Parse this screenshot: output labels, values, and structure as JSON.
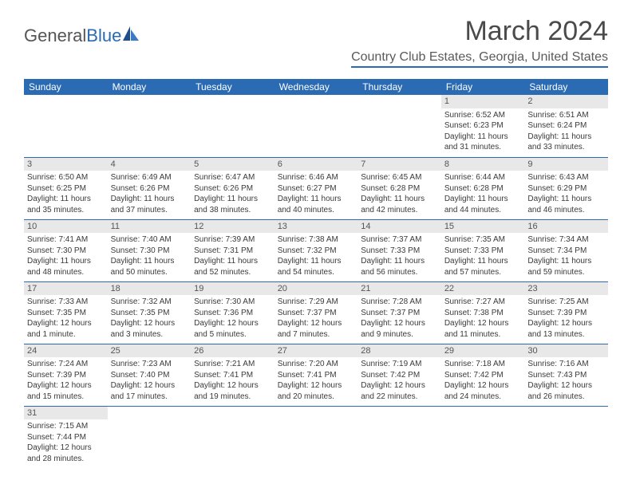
{
  "brand": {
    "part1": "General",
    "part2": "Blue"
  },
  "title": "March 2024",
  "location": "Country Club Estates, Georgia, United States",
  "colors": {
    "accent": "#2a6bb4",
    "header_bg": "#2a6bb4",
    "header_text": "#ffffff",
    "daynum_bg": "#e8e8e8",
    "text": "#3a3a3a",
    "bg": "#ffffff"
  },
  "day_headers": [
    "Sunday",
    "Monday",
    "Tuesday",
    "Wednesday",
    "Thursday",
    "Friday",
    "Saturday"
  ],
  "weeks": [
    [
      null,
      null,
      null,
      null,
      null,
      {
        "d": "1",
        "sr": "Sunrise: 6:52 AM",
        "ss": "Sunset: 6:23 PM",
        "dl": "Daylight: 11 hours and 31 minutes."
      },
      {
        "d": "2",
        "sr": "Sunrise: 6:51 AM",
        "ss": "Sunset: 6:24 PM",
        "dl": "Daylight: 11 hours and 33 minutes."
      }
    ],
    [
      {
        "d": "3",
        "sr": "Sunrise: 6:50 AM",
        "ss": "Sunset: 6:25 PM",
        "dl": "Daylight: 11 hours and 35 minutes."
      },
      {
        "d": "4",
        "sr": "Sunrise: 6:49 AM",
        "ss": "Sunset: 6:26 PM",
        "dl": "Daylight: 11 hours and 37 minutes."
      },
      {
        "d": "5",
        "sr": "Sunrise: 6:47 AM",
        "ss": "Sunset: 6:26 PM",
        "dl": "Daylight: 11 hours and 38 minutes."
      },
      {
        "d": "6",
        "sr": "Sunrise: 6:46 AM",
        "ss": "Sunset: 6:27 PM",
        "dl": "Daylight: 11 hours and 40 minutes."
      },
      {
        "d": "7",
        "sr": "Sunrise: 6:45 AM",
        "ss": "Sunset: 6:28 PM",
        "dl": "Daylight: 11 hours and 42 minutes."
      },
      {
        "d": "8",
        "sr": "Sunrise: 6:44 AM",
        "ss": "Sunset: 6:28 PM",
        "dl": "Daylight: 11 hours and 44 minutes."
      },
      {
        "d": "9",
        "sr": "Sunrise: 6:43 AM",
        "ss": "Sunset: 6:29 PM",
        "dl": "Daylight: 11 hours and 46 minutes."
      }
    ],
    [
      {
        "d": "10",
        "sr": "Sunrise: 7:41 AM",
        "ss": "Sunset: 7:30 PM",
        "dl": "Daylight: 11 hours and 48 minutes."
      },
      {
        "d": "11",
        "sr": "Sunrise: 7:40 AM",
        "ss": "Sunset: 7:30 PM",
        "dl": "Daylight: 11 hours and 50 minutes."
      },
      {
        "d": "12",
        "sr": "Sunrise: 7:39 AM",
        "ss": "Sunset: 7:31 PM",
        "dl": "Daylight: 11 hours and 52 minutes."
      },
      {
        "d": "13",
        "sr": "Sunrise: 7:38 AM",
        "ss": "Sunset: 7:32 PM",
        "dl": "Daylight: 11 hours and 54 minutes."
      },
      {
        "d": "14",
        "sr": "Sunrise: 7:37 AM",
        "ss": "Sunset: 7:33 PM",
        "dl": "Daylight: 11 hours and 56 minutes."
      },
      {
        "d": "15",
        "sr": "Sunrise: 7:35 AM",
        "ss": "Sunset: 7:33 PM",
        "dl": "Daylight: 11 hours and 57 minutes."
      },
      {
        "d": "16",
        "sr": "Sunrise: 7:34 AM",
        "ss": "Sunset: 7:34 PM",
        "dl": "Daylight: 11 hours and 59 minutes."
      }
    ],
    [
      {
        "d": "17",
        "sr": "Sunrise: 7:33 AM",
        "ss": "Sunset: 7:35 PM",
        "dl": "Daylight: 12 hours and 1 minute."
      },
      {
        "d": "18",
        "sr": "Sunrise: 7:32 AM",
        "ss": "Sunset: 7:35 PM",
        "dl": "Daylight: 12 hours and 3 minutes."
      },
      {
        "d": "19",
        "sr": "Sunrise: 7:30 AM",
        "ss": "Sunset: 7:36 PM",
        "dl": "Daylight: 12 hours and 5 minutes."
      },
      {
        "d": "20",
        "sr": "Sunrise: 7:29 AM",
        "ss": "Sunset: 7:37 PM",
        "dl": "Daylight: 12 hours and 7 minutes."
      },
      {
        "d": "21",
        "sr": "Sunrise: 7:28 AM",
        "ss": "Sunset: 7:37 PM",
        "dl": "Daylight: 12 hours and 9 minutes."
      },
      {
        "d": "22",
        "sr": "Sunrise: 7:27 AM",
        "ss": "Sunset: 7:38 PM",
        "dl": "Daylight: 12 hours and 11 minutes."
      },
      {
        "d": "23",
        "sr": "Sunrise: 7:25 AM",
        "ss": "Sunset: 7:39 PM",
        "dl": "Daylight: 12 hours and 13 minutes."
      }
    ],
    [
      {
        "d": "24",
        "sr": "Sunrise: 7:24 AM",
        "ss": "Sunset: 7:39 PM",
        "dl": "Daylight: 12 hours and 15 minutes."
      },
      {
        "d": "25",
        "sr": "Sunrise: 7:23 AM",
        "ss": "Sunset: 7:40 PM",
        "dl": "Daylight: 12 hours and 17 minutes."
      },
      {
        "d": "26",
        "sr": "Sunrise: 7:21 AM",
        "ss": "Sunset: 7:41 PM",
        "dl": "Daylight: 12 hours and 19 minutes."
      },
      {
        "d": "27",
        "sr": "Sunrise: 7:20 AM",
        "ss": "Sunset: 7:41 PM",
        "dl": "Daylight: 12 hours and 20 minutes."
      },
      {
        "d": "28",
        "sr": "Sunrise: 7:19 AM",
        "ss": "Sunset: 7:42 PM",
        "dl": "Daylight: 12 hours and 22 minutes."
      },
      {
        "d": "29",
        "sr": "Sunrise: 7:18 AM",
        "ss": "Sunset: 7:42 PM",
        "dl": "Daylight: 12 hours and 24 minutes."
      },
      {
        "d": "30",
        "sr": "Sunrise: 7:16 AM",
        "ss": "Sunset: 7:43 PM",
        "dl": "Daylight: 12 hours and 26 minutes."
      }
    ],
    [
      {
        "d": "31",
        "sr": "Sunrise: 7:15 AM",
        "ss": "Sunset: 7:44 PM",
        "dl": "Daylight: 12 hours and 28 minutes."
      },
      null,
      null,
      null,
      null,
      null,
      null
    ]
  ]
}
